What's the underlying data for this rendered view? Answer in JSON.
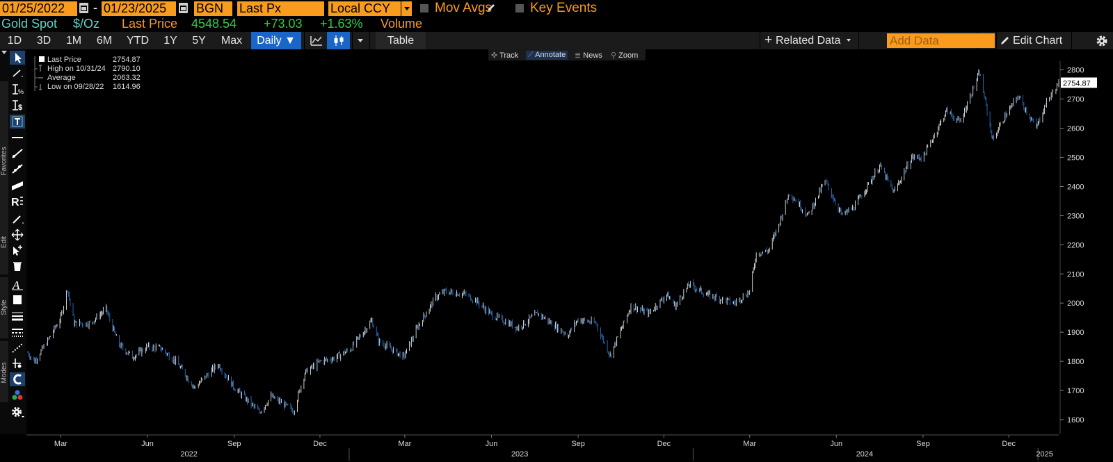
{
  "header": {
    "start_date": "01/25/2022",
    "end_date": "01/23/2025",
    "date_separator": "-",
    "source": "BGN",
    "field": "Last Px",
    "currency": "Local CCY",
    "mov_avgs": "Mov Avgs",
    "key_events": "Key Events"
  },
  "quote": {
    "security": "Gold Spot",
    "unit": "$/Oz",
    "last_price_label": "Last Price",
    "last_price": "4548.54",
    "change": "+73.03",
    "change_pct": "+1.63%",
    "volume_label": "Volume"
  },
  "toolbar": {
    "periods": [
      "1D",
      "3D",
      "1M",
      "6M",
      "YTD",
      "1Y",
      "5Y",
      "Max"
    ],
    "frequency": "Daily ▼",
    "table": "Table",
    "related_data": "Related Data",
    "add_data_placeholder": "Add Data",
    "edit_chart": "Edit Chart"
  },
  "sidebar": {
    "tabs": [
      "Favorites",
      "Edit",
      "Style",
      "Modes"
    ]
  },
  "modebar": {
    "items": [
      "Track",
      "Annotate",
      "News",
      "Zoom"
    ],
    "active": "Annotate"
  },
  "legend": {
    "rows": [
      {
        "label": "Last Price",
        "value": "2754.87"
      },
      {
        "label": "High on 10/31/24",
        "value": "2790.10"
      },
      {
        "label": "Average",
        "value": "2063.32"
      },
      {
        "label": "Low on 09/28/22",
        "value": "1614.96"
      }
    ]
  },
  "colors": {
    "accent_orange": "#f99b1c",
    "price_green": "#2ecc40",
    "label_cyan": "#5ad5c8",
    "selected_blue": "#1a66c8",
    "candle_up": "#ffffff",
    "candle_down": "#2f7fd6"
  },
  "chart_data": {
    "type": "line",
    "style": "candlestick-like daily bars",
    "series": [
      {
        "name": "Last Price",
        "x": [
          "2022-01-25",
          "2022-02-01",
          "2022-02-15",
          "2022-03-01",
          "2022-03-08",
          "2022-03-15",
          "2022-04-01",
          "2022-04-18",
          "2022-05-01",
          "2022-05-16",
          "2022-06-01",
          "2022-06-15",
          "2022-07-01",
          "2022-07-21",
          "2022-08-15",
          "2022-09-01",
          "2022-09-28",
          "2022-10-10",
          "2022-11-03",
          "2022-11-15",
          "2022-12-01",
          "2022-12-15",
          "2023-01-02",
          "2023-01-25",
          "2023-02-01",
          "2023-02-28",
          "2023-03-15",
          "2023-04-03",
          "2023-04-13",
          "2023-05-04",
          "2023-05-15",
          "2023-06-01",
          "2023-06-29",
          "2023-07-20",
          "2023-08-21",
          "2023-09-01",
          "2023-09-20",
          "2023-10-05",
          "2023-10-27",
          "2023-11-15",
          "2023-12-04",
          "2023-12-13",
          "2023-12-28",
          "2024-01-15",
          "2024-02-14",
          "2024-03-01",
          "2024-03-08",
          "2024-03-21",
          "2024-04-01",
          "2024-04-12",
          "2024-05-02",
          "2024-05-20",
          "2024-06-07",
          "2024-06-20",
          "2024-07-17",
          "2024-08-01",
          "2024-08-20",
          "2024-09-01",
          "2024-09-26",
          "2024-10-10",
          "2024-10-31",
          "2024-11-14",
          "2024-11-25",
          "2024-12-11",
          "2024-12-30",
          "2025-01-10",
          "2025-01-23"
        ],
        "values": [
          1830,
          1800,
          1870,
          1950,
          2050,
          1930,
          1930,
          1980,
          1860,
          1815,
          1850,
          1845,
          1800,
          1710,
          1790,
          1710,
          1625,
          1680,
          1630,
          1760,
          1800,
          1810,
          1840,
          1940,
          1870,
          1815,
          1920,
          2020,
          2040,
          2030,
          2010,
          1960,
          1915,
          1965,
          1890,
          1945,
          1930,
          1820,
          1990,
          1965,
          2030,
          1990,
          2065,
          2030,
          2000,
          2040,
          2170,
          2180,
          2270,
          2380,
          2300,
          2420,
          2300,
          2330,
          2470,
          2380,
          2500,
          2500,
          2660,
          2620,
          2790,
          2560,
          2630,
          2710,
          2600,
          2690,
          2754.87
        ]
      }
    ],
    "y_axis": {
      "ticks": [
        1600,
        1700,
        1800,
        1900,
        2000,
        2100,
        2200,
        2300,
        2400,
        2500,
        2600,
        2700,
        2800
      ],
      "range": [
        1550,
        2830
      ],
      "position": "right"
    },
    "x_axis": {
      "month_ticks": [
        {
          "date": "2022-03-01",
          "label": "Mar"
        },
        {
          "date": "2022-06-01",
          "label": "Jun"
        },
        {
          "date": "2022-09-01",
          "label": "Sep"
        },
        {
          "date": "2022-12-01",
          "label": "Dec"
        },
        {
          "date": "2023-03-01",
          "label": "Mar"
        },
        {
          "date": "2023-06-01",
          "label": "Jun"
        },
        {
          "date": "2023-09-01",
          "label": "Sep"
        },
        {
          "date": "2023-12-01",
          "label": "Dec"
        },
        {
          "date": "2024-03-01",
          "label": "Mar"
        },
        {
          "date": "2024-06-01",
          "label": "Jun"
        },
        {
          "date": "2024-09-01",
          "label": "Sep"
        },
        {
          "date": "2024-12-01",
          "label": "Dec"
        }
      ],
      "year_labels": [
        {
          "date": "2022-07-15",
          "label": "2022"
        },
        {
          "date": "2023-07-01",
          "label": "2023"
        },
        {
          "date": "2024-07-01",
          "label": "2024"
        },
        {
          "date": "2025-01-08",
          "label": "2025"
        }
      ],
      "year_dividers": [
        "2023-01-01",
        "2024-01-01",
        "2025-01-01"
      ],
      "range": [
        "2022-01-25",
        "2025-01-23"
      ]
    },
    "last_value_label": "2754.87",
    "grid": false,
    "legend": "top-left"
  }
}
